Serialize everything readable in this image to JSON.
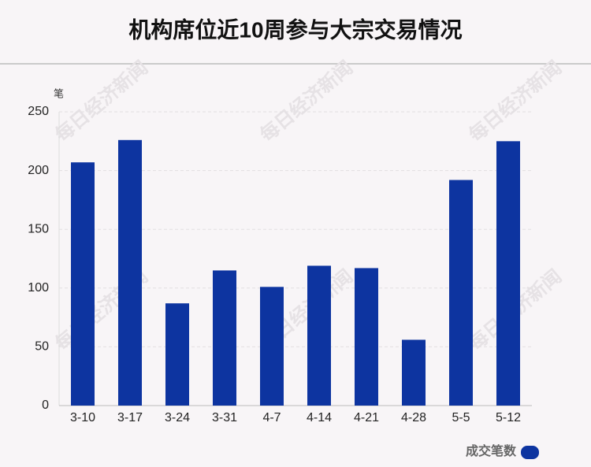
{
  "chart_data": {
    "type": "bar",
    "title": "机构席位近10周参与大宗交易情况",
    "y_label": "笔",
    "categories": [
      "3-10",
      "3-17",
      "3-24",
      "3-31",
      "4-7",
      "4-14",
      "4-21",
      "4-28",
      "5-5",
      "5-12"
    ],
    "series": [
      {
        "name": "成交笔数",
        "color": "#0d34a0",
        "values": [
          207,
          226,
          87,
          115,
          101,
          119,
          117,
          56,
          192,
          225
        ]
      }
    ],
    "ylim": [
      0,
      250
    ],
    "yticks": [
      0,
      50,
      100,
      150,
      200,
      250
    ],
    "grid": true,
    "legend": "bottom-right",
    "watermark": "每日经济新闻"
  }
}
